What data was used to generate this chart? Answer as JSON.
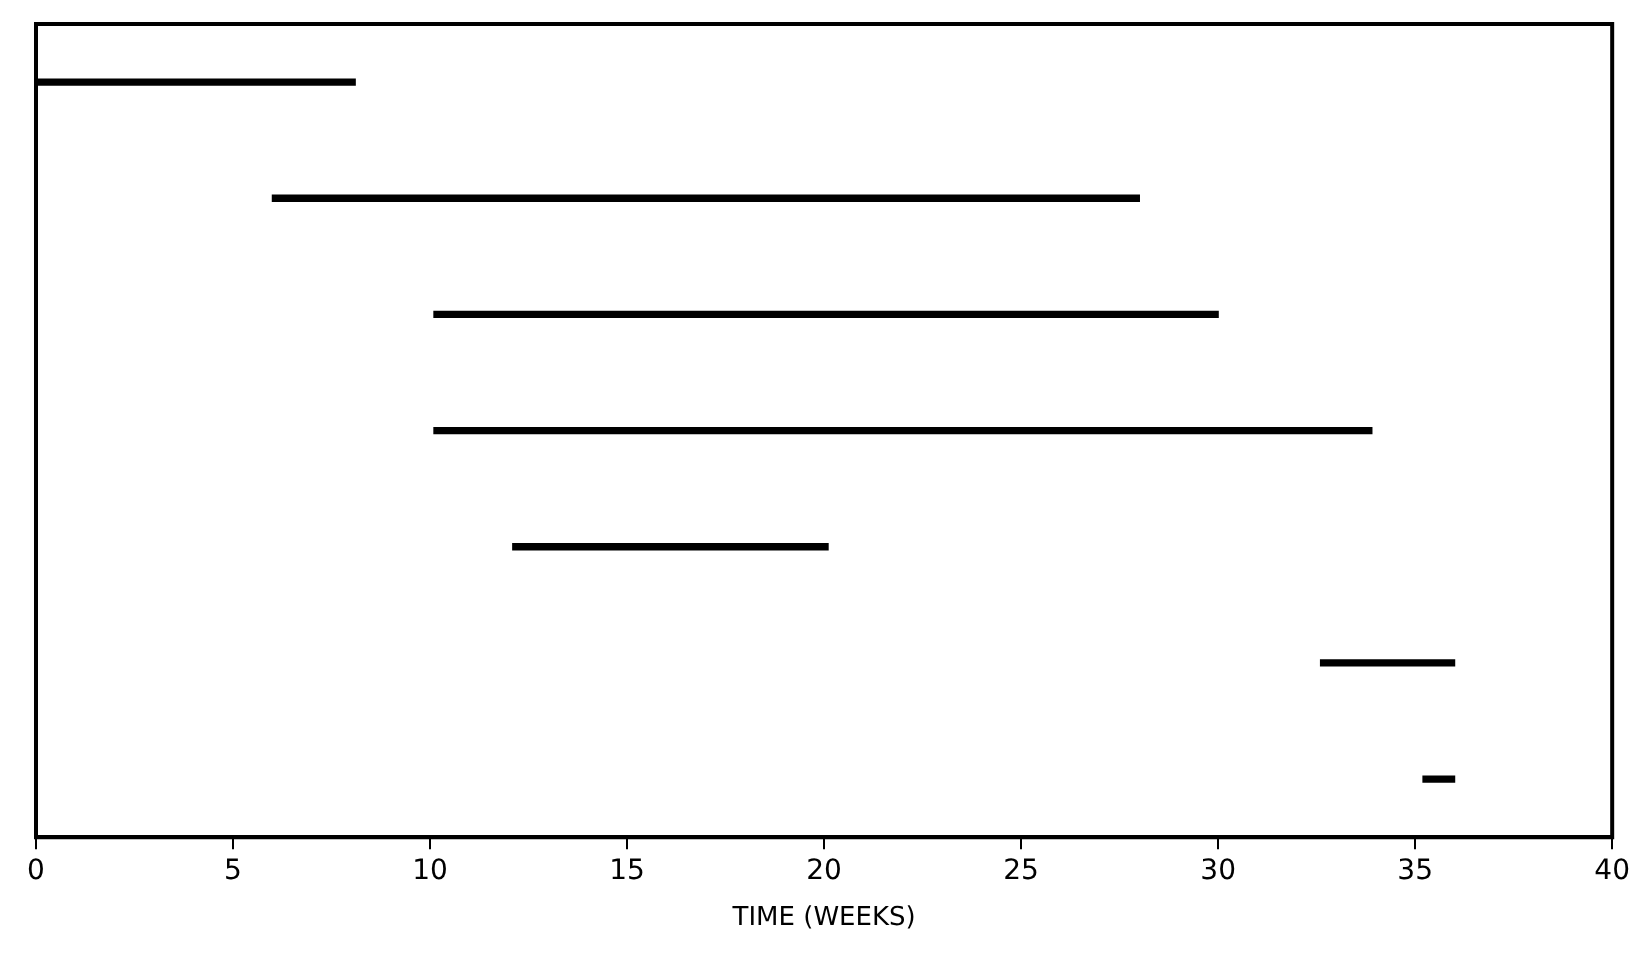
{
  "chart_data": {
    "type": "bar",
    "orientation": "horizontal",
    "xlabel": "TIME (WEEKS)",
    "categories": [
      null,
      null,
      null,
      null,
      null,
      null,
      null
    ],
    "base": [
      0,
      6.0,
      10.1,
      10.1,
      12.1,
      32.6,
      35.2
    ],
    "values": [
      8.1,
      22.0,
      19.9,
      23.8,
      8.0,
      3.4,
      0.8
    ],
    "color": "#000000",
    "xlim": [
      0,
      40
    ],
    "xticks": [
      0,
      5,
      10,
      15,
      20,
      25,
      30,
      35,
      40
    ],
    "grid": false,
    "legend": false
  }
}
